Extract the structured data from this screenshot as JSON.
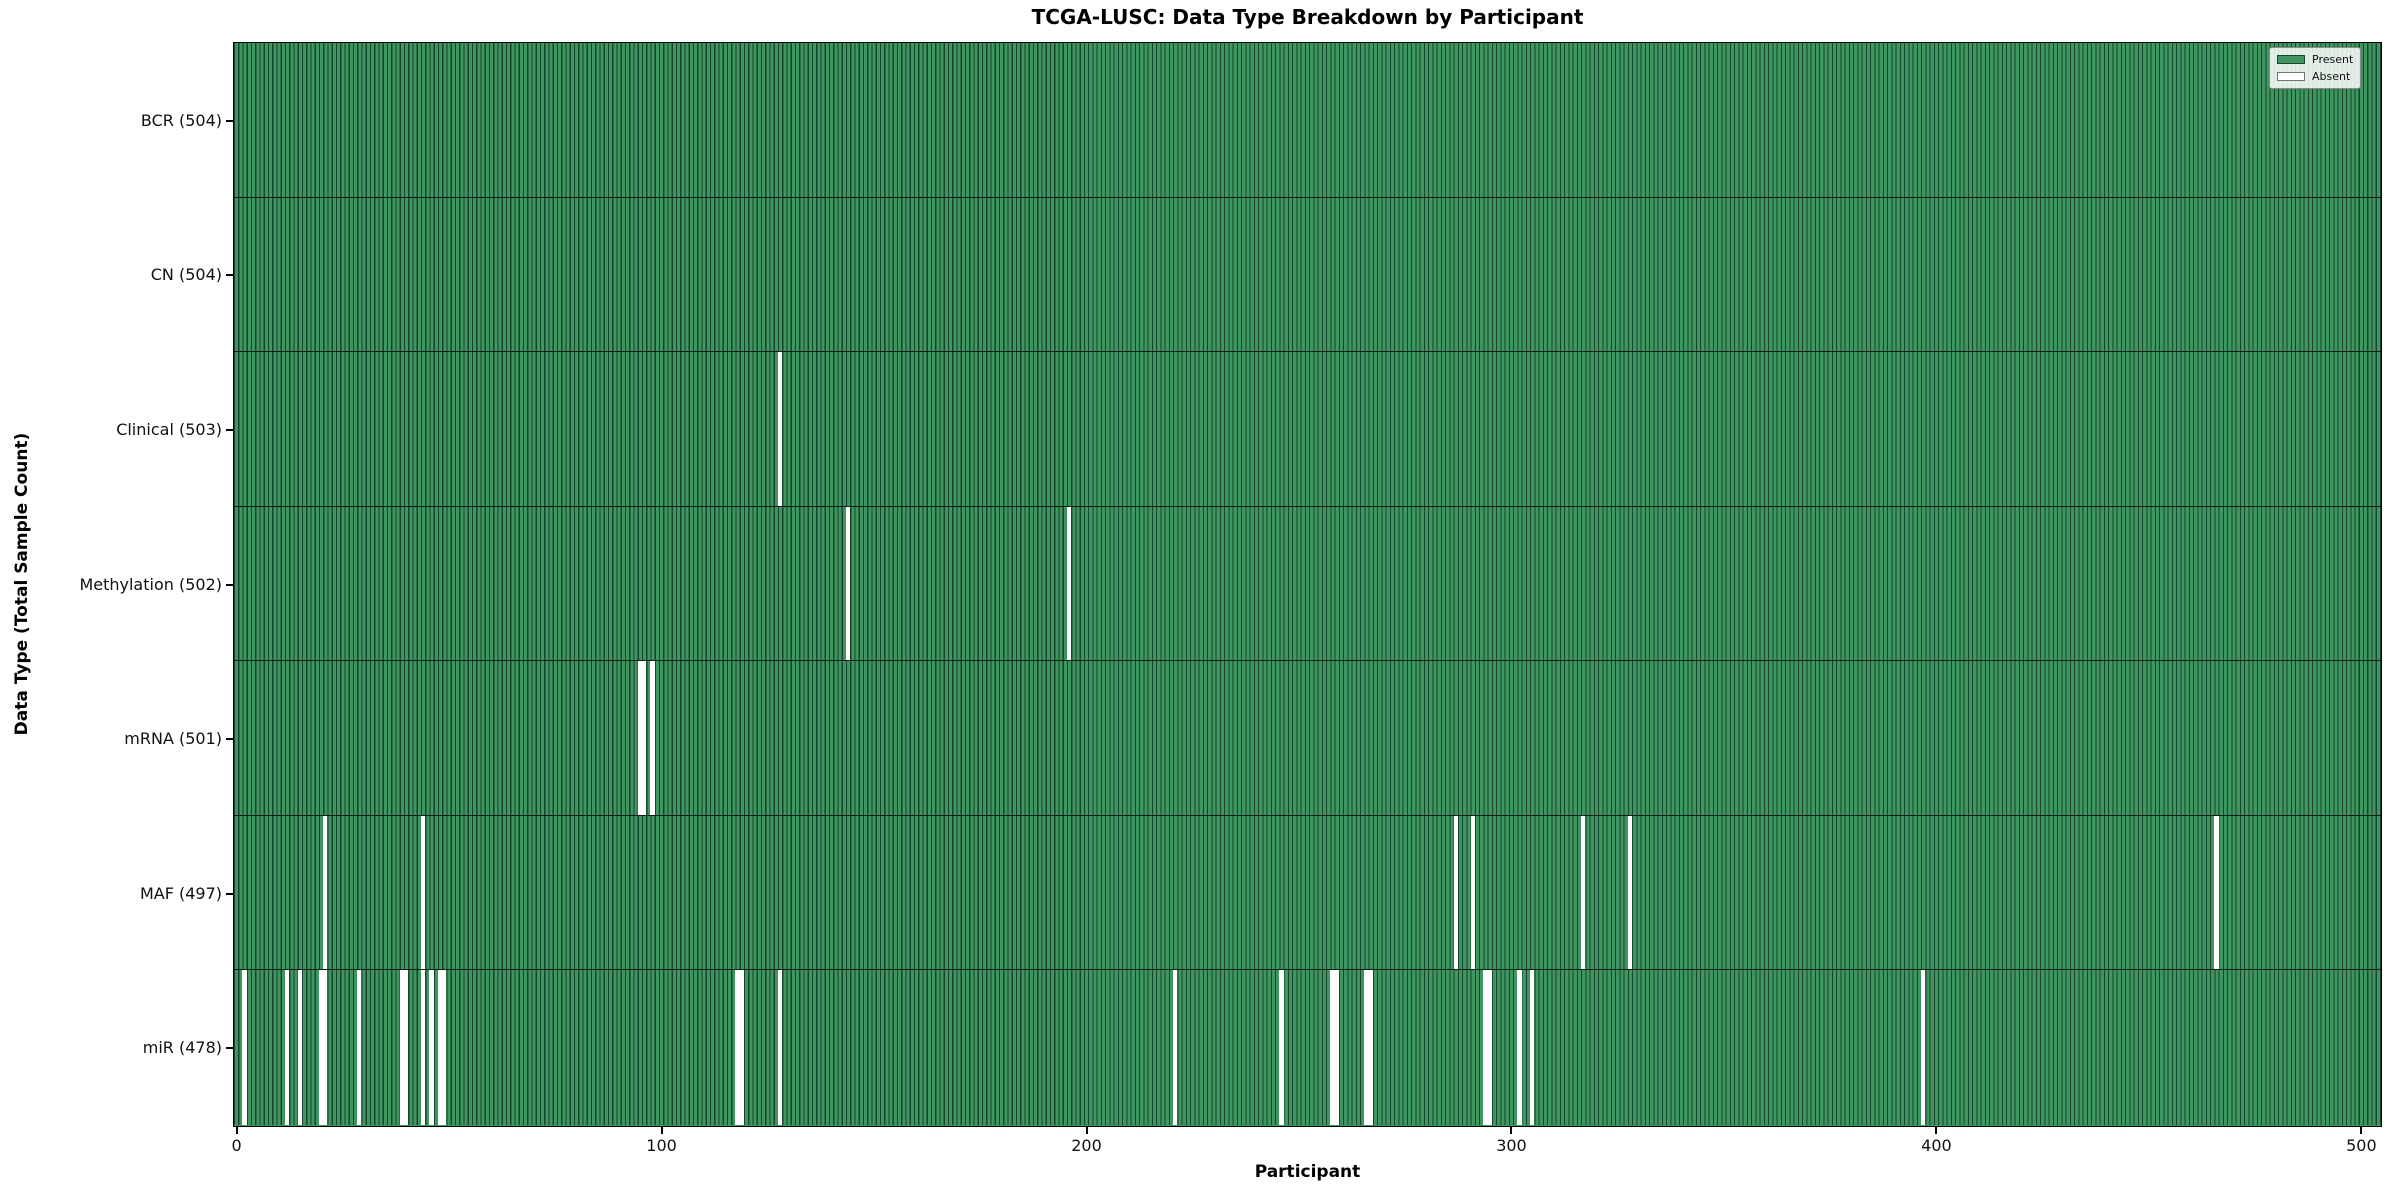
{
  "chart_data": {
    "type": "heatmap",
    "title": "TCGA-LUSC: Data Type Breakdown by Participant",
    "xlabel": "Participant",
    "ylabel": "Data Type (Total Sample Count)",
    "x_ticks": [
      0,
      100,
      200,
      300,
      400,
      500
    ],
    "xlim": [
      -0.5,
      504.5
    ],
    "n_participants": 504,
    "grid": false,
    "legend_position": "upper right",
    "legend": [
      {
        "label": "Present",
        "color": "#3F9660"
      },
      {
        "label": "Absent",
        "color": "#FFFFFF"
      }
    ],
    "colors": {
      "present_fill": "#3F9660",
      "bar_edge": "#17452C",
      "absent_fill": "#FFFFFF"
    },
    "rows": [
      {
        "label": "BCR (504)",
        "present_count": 504,
        "absent_participants": []
      },
      {
        "label": "CN (504)",
        "present_count": 504,
        "absent_participants": []
      },
      {
        "label": "Clinical (503)",
        "present_count": 503,
        "absent_participants": [
          128
        ]
      },
      {
        "label": "Methylation (502)",
        "present_count": 502,
        "absent_participants": [
          144,
          196
        ]
      },
      {
        "label": "mRNA (501)",
        "present_count": 501,
        "absent_participants": [
          95,
          96,
          98
        ]
      },
      {
        "label": "MAF (497)",
        "present_count": 497,
        "absent_participants": [
          21,
          44,
          287,
          291,
          317,
          328,
          466
        ]
      },
      {
        "label": "miR (478)",
        "present_count": 478,
        "absent_participants": [
          2,
          12,
          15,
          20,
          21,
          29,
          39,
          40,
          44,
          46,
          48,
          49,
          118,
          119,
          128,
          221,
          246,
          258,
          259,
          266,
          267,
          294,
          295,
          302,
          305,
          397
        ]
      }
    ]
  }
}
